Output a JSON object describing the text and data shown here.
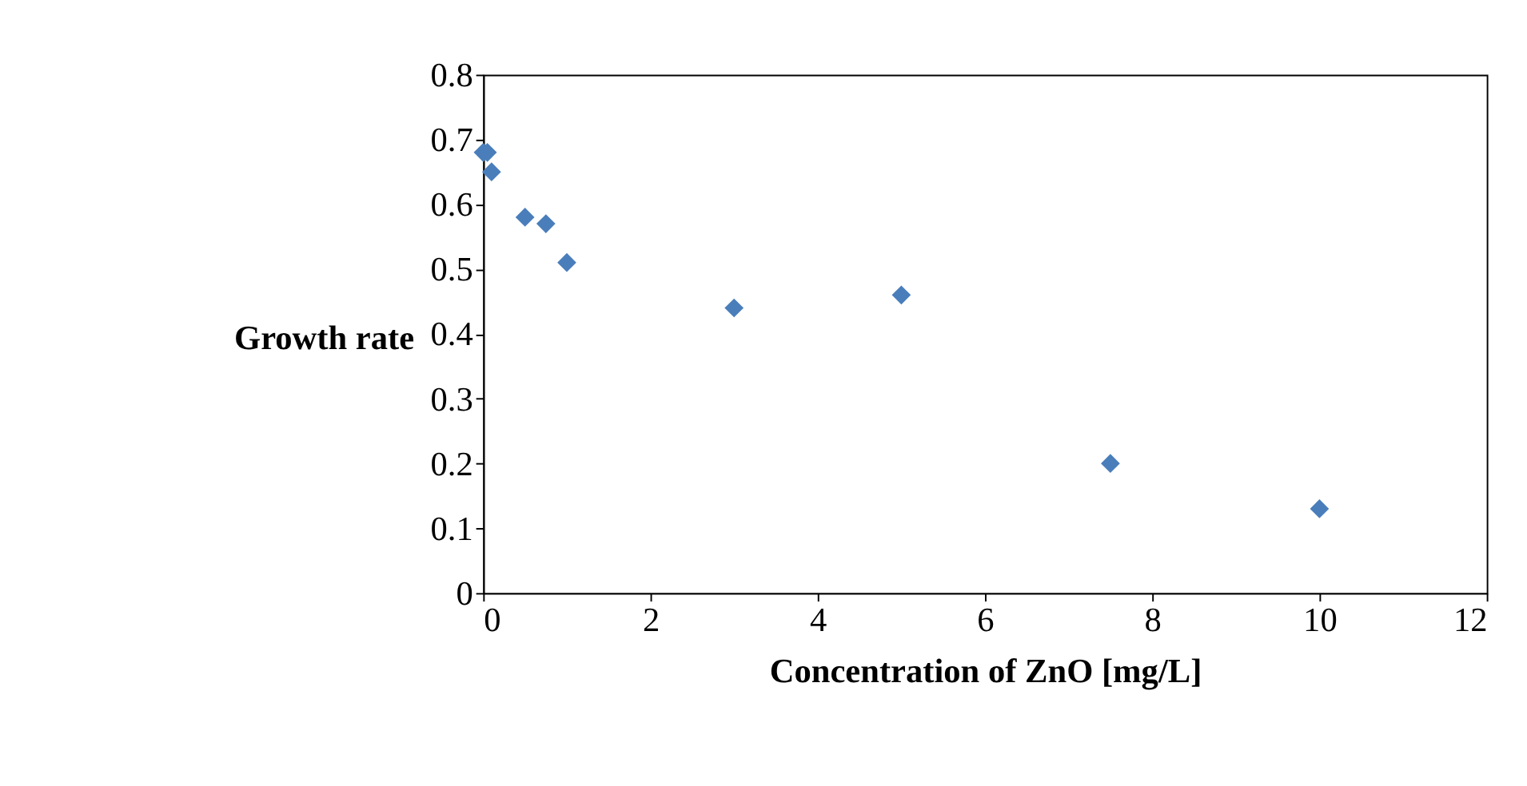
{
  "chart_data": {
    "type": "scatter",
    "xlabel": "Concentration of ZnO [mg/L]",
    "ylabel": "Growth rate",
    "x": [
      0,
      0.05,
      0.1,
      0.5,
      0.75,
      1,
      3,
      5,
      7.5,
      10
    ],
    "series": [
      {
        "color": "#4a7ebb",
        "values": [
          0.68,
          0.68,
          0.65,
          0.58,
          0.57,
          0.51,
          0.44,
          0.46,
          0.2,
          0.13
        ]
      }
    ],
    "xlim": [
      0,
      12
    ],
    "xticks": [
      0,
      2,
      4,
      6,
      8,
      10,
      12
    ],
    "ylim": [
      0,
      0.8
    ],
    "yticks": [
      0,
      0.1,
      0.2,
      0.3,
      0.4,
      0.5,
      0.6,
      0.7,
      0.8
    ],
    "marker": "diamond",
    "grid": false
  }
}
